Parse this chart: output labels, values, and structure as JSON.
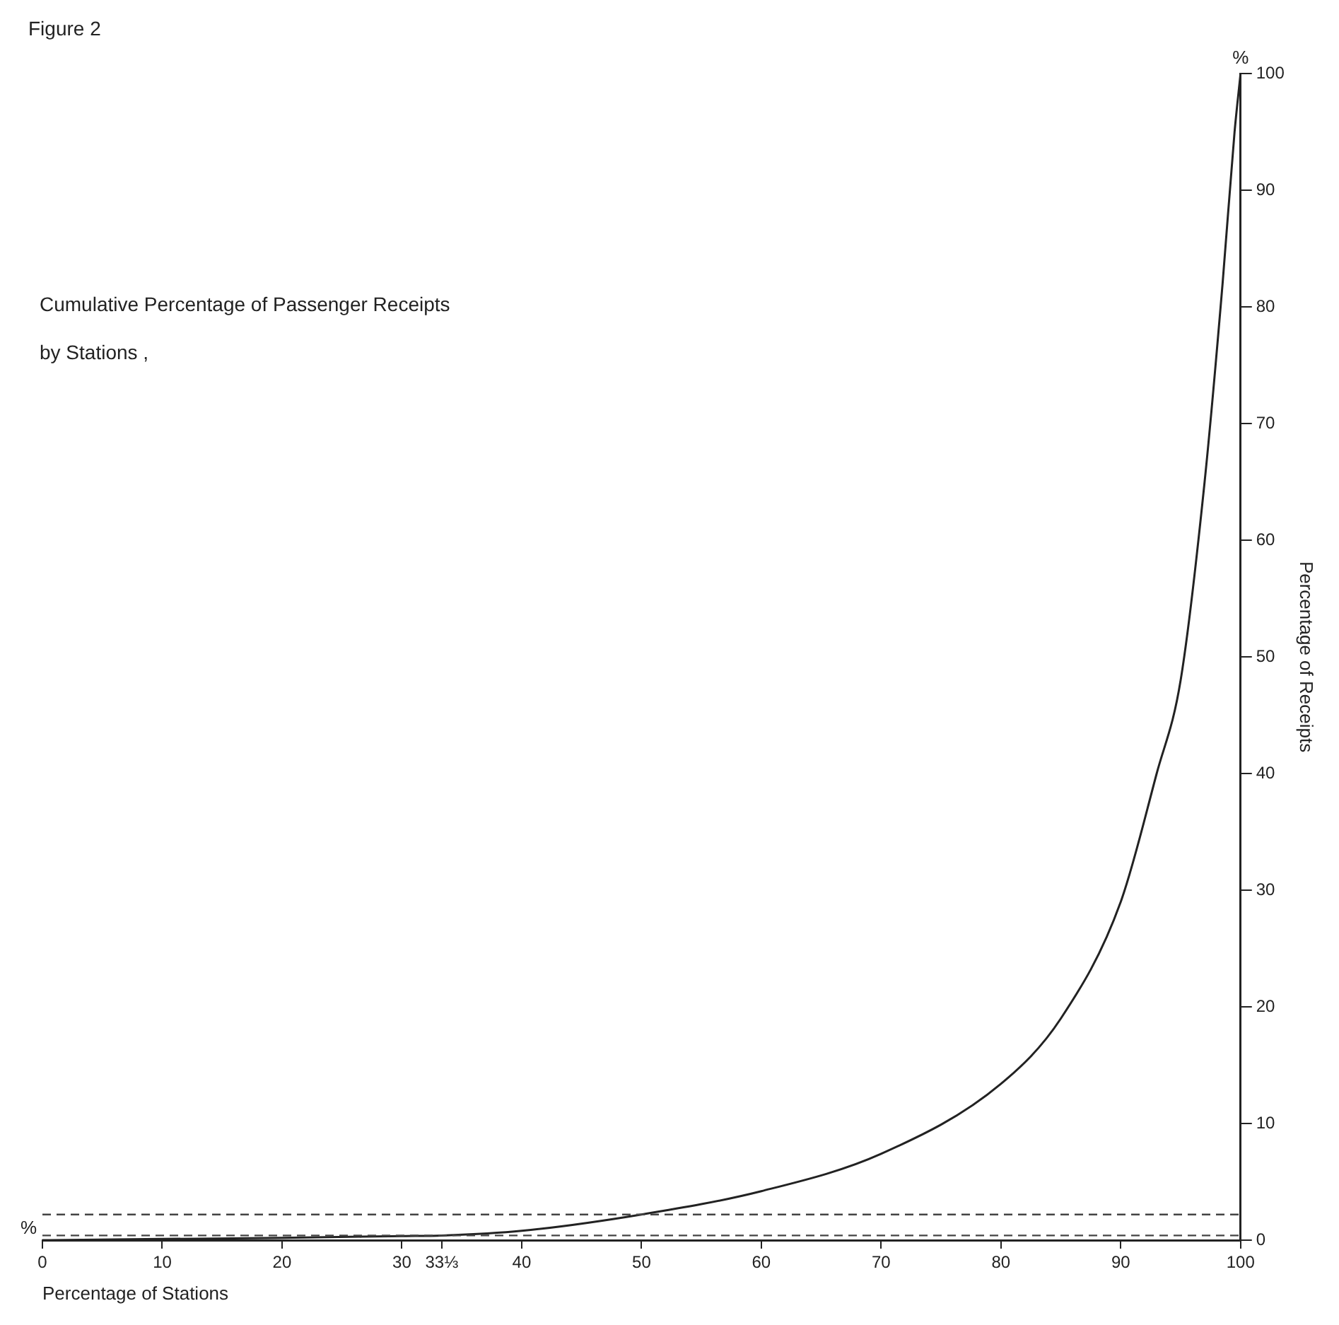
{
  "chart_data": {
    "type": "line",
    "title": "Figure 2",
    "subtitle": "Cumulative Percentage of Passenger Receipts by Stations ,",
    "xlabel": "Percentage of Stations",
    "ylabel": "Percentage of Receipts",
    "annotations": [
      "%",
      "%"
    ],
    "series": [
      {
        "color": "#222222",
        "x": [
          0,
          10,
          20,
          30,
          33.33,
          40,
          50,
          60,
          70,
          80,
          85,
          90,
          93,
          95,
          97,
          98.5,
          99.5,
          100
        ],
        "values": [
          0,
          0.1,
          0.2,
          0.35,
          0.4,
          0.8,
          2.2,
          4.2,
          7.4,
          13.4,
          19,
          29,
          40,
          48,
          65,
          82,
          95,
          100
        ]
      }
    ],
    "xlim": [
      0,
      100
    ],
    "xticks": [
      0,
      10,
      20,
      30,
      {
        "value": 33.33,
        "label": "33⅓"
      },
      40,
      50,
      60,
      70,
      80,
      90,
      100
    ],
    "ylim": [
      0,
      100
    ],
    "yticks": [
      0,
      10,
      20,
      30,
      40,
      50,
      60,
      70,
      80,
      90,
      100
    ],
    "ref_lines": [
      {
        "axis": "y",
        "value": 0.4,
        "line_style": "dashed",
        "color": "#444444"
      },
      {
        "axis": "y",
        "value": 2.2,
        "line_style": "dashed",
        "color": "#444444"
      }
    ],
    "grid": false,
    "legend": false,
    "marker": "none",
    "line_style": "solid"
  }
}
